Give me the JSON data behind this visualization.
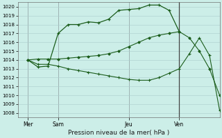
{
  "bg_color": "#cceee8",
  "grid_color": "#aacccc",
  "line_color": "#1a5c1a",
  "title": "Pression niveau de la mer( hPa )",
  "ylim": [
    1007.5,
    1020.5
  ],
  "yticks": [
    1008,
    1009,
    1010,
    1011,
    1012,
    1013,
    1014,
    1015,
    1016,
    1017,
    1018,
    1019,
    1020
  ],
  "xlim": [
    0,
    20
  ],
  "day_positions": [
    1,
    4,
    11,
    16
  ],
  "day_labels": [
    "Mer",
    "Sam",
    "Jeu",
    "Ven"
  ],
  "vline_positions": [
    1,
    4,
    11,
    16
  ],
  "strong_vline": 16,
  "line1_x": [
    1,
    2,
    3,
    4,
    5,
    6,
    7,
    8,
    9,
    10,
    11,
    12,
    13,
    14,
    15,
    16
  ],
  "line1_y": [
    1014.0,
    1013.2,
    1013.3,
    1017.0,
    1018.0,
    1018.0,
    1018.3,
    1018.2,
    1018.6,
    1019.6,
    1019.7,
    1019.8,
    1020.2,
    1020.2,
    1019.6,
    1017.2
  ],
  "line2_x": [
    1,
    2,
    3,
    4,
    5,
    6,
    7,
    8,
    9,
    10,
    11,
    12,
    13,
    14,
    15,
    16,
    17,
    18,
    19,
    20
  ],
  "line2_y": [
    1014.0,
    1014.1,
    1014.1,
    1014.1,
    1014.2,
    1014.3,
    1014.4,
    1014.5,
    1014.7,
    1015.0,
    1015.5,
    1016.0,
    1016.5,
    1016.8,
    1017.0,
    1017.2,
    1016.5,
    1015.0,
    1013.0,
    1010.0
  ],
  "line3_x": [
    1,
    2,
    3,
    4,
    5,
    6,
    7,
    8,
    9,
    10,
    11,
    12,
    13,
    14,
    15,
    16,
    17,
    18,
    19,
    20
  ],
  "line3_y": [
    1014.0,
    1013.5,
    1013.5,
    1013.3,
    1013.0,
    1012.8,
    1012.6,
    1012.4,
    1012.2,
    1012.0,
    1011.8,
    1011.7,
    1011.7,
    1012.0,
    1012.5,
    1013.0,
    1014.7,
    1016.5,
    1014.5,
    1008.3
  ]
}
